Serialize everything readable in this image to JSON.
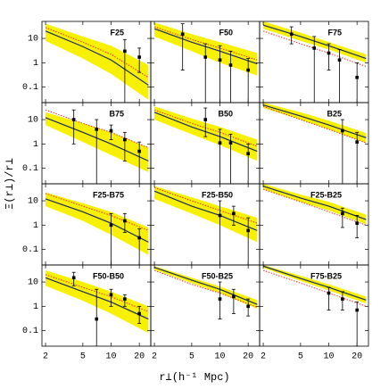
{
  "xlabel": "r⊥(h⁻¹ Mpc)",
  "ylabel": "Ξ(r⊥)/r⊥",
  "chart_data": [
    {
      "type": "errorbar",
      "title": "F25",
      "xlim": [
        1.83,
        26.5
      ],
      "ylim": [
        0.023,
        50
      ],
      "log": true,
      "xticks": [
        2,
        5,
        10,
        20
      ],
      "yticks": [
        0.1,
        1,
        10
      ],
      "band_color": "#f7f000",
      "line_color": "#1c2a6a",
      "dotted_color": "#e8302a",
      "x": [
        2,
        5,
        10,
        25
      ],
      "model": [
        20,
        4.6,
        1.3,
        0.12
      ],
      "band_high": [
        40,
        12,
        5,
        0.8
      ],
      "band_low": [
        8,
        1.5,
        0.35,
        0.03
      ],
      "dotted": [
        28,
        7,
        2.2,
        0.25
      ],
      "points_x": [
        14,
        20
      ],
      "points_y": [
        3,
        1.7
      ],
      "points_low": [
        0.023,
        0.4
      ],
      "points_high": [
        9,
        4
      ]
    },
    {
      "type": "errorbar",
      "title": "F50",
      "xlim": [
        1.83,
        26.5
      ],
      "ylim": [
        0.023,
        50
      ],
      "log": true,
      "xticks": [
        2,
        5,
        10,
        20
      ],
      "yticks": [
        0.1,
        1,
        10
      ],
      "band_color": "#f7f000",
      "line_color": "#1c2a6a",
      "dotted_color": "#e8302a",
      "x": [
        2,
        5,
        10,
        25
      ],
      "model": [
        25,
        7,
        3,
        0.9
      ],
      "band_high": [
        45,
        15,
        7,
        2.5
      ],
      "band_low": [
        12,
        3,
        1,
        0.3
      ],
      "dotted": [
        30,
        9,
        4,
        1.3
      ],
      "points_x": [
        4,
        7,
        10,
        13,
        20
      ],
      "points_y": [
        15,
        1.7,
        1.3,
        0.8,
        0.5
      ],
      "points_low": [
        0.5,
        0.023,
        0.023,
        0.023,
        0.023
      ],
      "points_high": [
        40,
        6,
        5,
        3,
        1.5
      ]
    },
    {
      "type": "errorbar",
      "title": "F75",
      "xlim": [
        1.83,
        26.5
      ],
      "ylim": [
        0.023,
        50
      ],
      "log": true,
      "xticks": [
        2,
        5,
        10,
        20
      ],
      "yticks": [
        0.1,
        1,
        10
      ],
      "band_color": "#f7f000",
      "line_color": "#1c2a6a",
      "dotted_color": "#e8302a",
      "x": [
        2,
        5,
        10,
        25
      ],
      "model": [
        35,
        12,
        5,
        1.5
      ],
      "band_high": [
        50,
        17,
        7,
        2.2
      ],
      "band_low": [
        25,
        8,
        3.5,
        1
      ],
      "dotted": [
        20,
        6,
        2.5,
        0.7
      ],
      "points_x": [
        4,
        7,
        10,
        13,
        20
      ],
      "points_y": [
        15,
        4,
        2.5,
        1.3,
        0.25
      ],
      "points_low": [
        6,
        0.023,
        0.5,
        0.023,
        0.023
      ],
      "points_high": [
        30,
        12,
        6,
        3.5,
        1
      ]
    },
    {
      "type": "errorbar",
      "title": "B75",
      "xlim": [
        1.83,
        26.5
      ],
      "ylim": [
        0.023,
        50
      ],
      "log": true,
      "xticks": [
        2,
        5,
        10,
        20
      ],
      "yticks": [
        0.1,
        1,
        10
      ],
      "band_color": "#f7f000",
      "line_color": "#1c2a6a",
      "dotted_color": "#e8302a",
      "x": [
        2,
        5,
        10,
        25
      ],
      "model": [
        12,
        3,
        1,
        0.2
      ],
      "band_high": [
        20,
        7,
        3,
        0.7
      ],
      "band_low": [
        6,
        1.2,
        0.35,
        0.07
      ],
      "dotted": [
        25,
        7,
        3,
        0.7
      ],
      "points_x": [
        4,
        7,
        10,
        14,
        20
      ],
      "points_y": [
        10,
        4,
        3.5,
        1.5,
        0.5
      ],
      "points_low": [
        1,
        0.023,
        1.5,
        0.2,
        0.023
      ],
      "points_high": [
        25,
        10,
        6,
        3,
        1.2
      ]
    },
    {
      "type": "errorbar",
      "title": "B50",
      "xlim": [
        1.83,
        26.5
      ],
      "ylim": [
        0.023,
        50
      ],
      "log": true,
      "xticks": [
        2,
        5,
        10,
        20
      ],
      "yticks": [
        0.1,
        1,
        10
      ],
      "band_color": "#f7f000",
      "line_color": "#1c2a6a",
      "dotted_color": "#e8302a",
      "x": [
        2,
        5,
        10,
        25
      ],
      "model": [
        20,
        5,
        2,
        0.5
      ],
      "band_high": [
        35,
        11,
        5,
        1.5
      ],
      "band_low": [
        10,
        2.5,
        0.9,
        0.2
      ],
      "dotted": [
        25,
        7,
        3,
        0.8
      ],
      "points_x": [
        7,
        10,
        13,
        20
      ],
      "points_y": [
        10,
        1.1,
        1.1,
        0.4
      ],
      "points_low": [
        2,
        0.023,
        0.023,
        0.023
      ],
      "points_high": [
        30,
        4,
        2.5,
        1
      ]
    },
    {
      "type": "errorbar",
      "title": "B25",
      "xlim": [
        1.83,
        26.5
      ],
      "ylim": [
        0.023,
        50
      ],
      "log": true,
      "xticks": [
        2,
        5,
        10,
        20
      ],
      "yticks": [
        0.1,
        1,
        10
      ],
      "band_color": "#f7f000",
      "line_color": "#1c2a6a",
      "dotted_color": "#e8302a",
      "x": [
        2,
        5,
        10,
        25
      ],
      "model": [
        40,
        14,
        6,
        1.8
      ],
      "band_high": [
        50,
        20,
        9,
        2.8
      ],
      "band_low": [
        30,
        10,
        4,
        1.1
      ],
      "dotted": [
        35,
        10,
        4,
        1.1
      ],
      "points_x": [
        14,
        20
      ],
      "points_y": [
        3.5,
        1.2
      ],
      "points_low": [
        0.023,
        0.023
      ],
      "points_high": [
        10,
        3
      ]
    },
    {
      "type": "errorbar",
      "title": "F25-B75",
      "xlim": [
        1.83,
        26.5
      ],
      "ylim": [
        0.023,
        50
      ],
      "log": true,
      "xticks": [
        2,
        5,
        10,
        20
      ],
      "yticks": [
        0.1,
        1,
        10
      ],
      "band_color": "#f7f000",
      "line_color": "#1c2a6a",
      "dotted_color": "#e8302a",
      "x": [
        2,
        5,
        10,
        25
      ],
      "model": [
        12,
        3.5,
        1.2,
        0.2
      ],
      "band_high": [
        22,
        8,
        3.5,
        0.8
      ],
      "band_low": [
        6,
        1.5,
        0.4,
        0.06
      ],
      "dotted": [
        20,
        6,
        2.5,
        0.6
      ],
      "points_x": [
        10,
        14,
        20
      ],
      "points_y": [
        1,
        1.5,
        0.3
      ],
      "points_low": [
        0.023,
        0.5,
        0.023
      ],
      "points_high": [
        3,
        3,
        0.7
      ]
    },
    {
      "type": "errorbar",
      "title": "F25-B50",
      "xlim": [
        1.83,
        26.5
      ],
      "ylim": [
        0.023,
        50
      ],
      "log": true,
      "xticks": [
        2,
        5,
        10,
        20
      ],
      "yticks": [
        0.1,
        1,
        10
      ],
      "band_color": "#f7f000",
      "line_color": "#1c2a6a",
      "dotted_color": "#e8302a",
      "x": [
        2,
        5,
        10,
        25
      ],
      "model": [
        25,
        6,
        2.5,
        0.6
      ],
      "band_high": [
        40,
        14,
        6,
        2
      ],
      "band_low": [
        12,
        3,
        1,
        0.2
      ],
      "dotted": [
        35,
        10,
        4,
        1.2
      ],
      "points_x": [
        10,
        14,
        20
      ],
      "points_y": [
        2.5,
        3,
        0.6
      ],
      "points_low": [
        0.023,
        1,
        0.023
      ],
      "points_high": [
        10,
        6,
        2
      ]
    },
    {
      "type": "errorbar",
      "title": "F25-B25",
      "xlim": [
        1.83,
        26.5
      ],
      "ylim": [
        0.023,
        50
      ],
      "log": true,
      "xticks": [
        2,
        5,
        10,
        20
      ],
      "yticks": [
        0.1,
        1,
        10
      ],
      "band_color": "#f7f000",
      "line_color": "#1c2a6a",
      "dotted_color": "#e8302a",
      "x": [
        2,
        5,
        10,
        25
      ],
      "model": [
        40,
        13,
        6,
        1.7
      ],
      "band_high": [
        50,
        18,
        9,
        2.7
      ],
      "band_low": [
        30,
        9,
        4,
        1.1
      ],
      "dotted": [
        30,
        9,
        3.5,
        1
      ],
      "points_x": [
        14,
        20
      ],
      "points_y": [
        3,
        1.2
      ],
      "points_low": [
        0.8,
        0.3
      ],
      "points_high": [
        5,
        2.5
      ]
    },
    {
      "type": "errorbar",
      "title": "F50-B50",
      "xlim": [
        1.83,
        26.5
      ],
      "ylim": [
        0.023,
        50
      ],
      "log": true,
      "xticks": [
        2,
        5,
        10,
        20
      ],
      "yticks": [
        0.1,
        1,
        10
      ],
      "band_color": "#f7f000",
      "line_color": "#1c2a6a",
      "dotted_color": "#e8302a",
      "x": [
        2,
        5,
        10,
        25
      ],
      "model": [
        15,
        4,
        1.5,
        0.3
      ],
      "band_high": [
        30,
        10,
        4,
        1
      ],
      "band_low": [
        7,
        1.7,
        0.5,
        0.08
      ],
      "dotted": [
        20,
        6,
        2.5,
        0.6
      ],
      "points_x": [
        4,
        7,
        10,
        14,
        20
      ],
      "points_y": [
        15,
        0.3,
        3,
        2,
        0.5
      ],
      "points_low": [
        7,
        0.023,
        1,
        1,
        0.2
      ],
      "points_high": [
        25,
        5,
        5,
        3,
        1
      ]
    },
    {
      "type": "errorbar",
      "title": "F50-B25",
      "xlim": [
        1.83,
        26.5
      ],
      "ylim": [
        0.023,
        50
      ],
      "log": true,
      "xticks": [
        2,
        5,
        10,
        20
      ],
      "yticks": [
        0.1,
        1,
        10
      ],
      "band_color": "#f7f000",
      "line_color": "#1c2a6a",
      "dotted_color": "#e8302a",
      "x": [
        2,
        5,
        10,
        25
      ],
      "model": [
        40,
        12,
        5,
        1.2
      ],
      "band_high": [
        45,
        15,
        6.5,
        1.8
      ],
      "band_low": [
        32,
        9,
        3.5,
        0.8
      ],
      "dotted": [
        30,
        8,
        3.5,
        0.9
      ],
      "points_x": [
        10,
        14,
        20
      ],
      "points_y": [
        2,
        2.5,
        1
      ],
      "points_low": [
        0.3,
        0.5,
        0.4
      ],
      "points_high": [
        10,
        5,
        2
      ]
    },
    {
      "type": "errorbar",
      "title": "F75-B25",
      "xlim": [
        1.83,
        26.5
      ],
      "ylim": [
        0.023,
        50
      ],
      "log": true,
      "xticks": [
        2,
        5,
        10,
        20
      ],
      "yticks": [
        0.1,
        1,
        10
      ],
      "band_color": "#f7f000",
      "line_color": "#1c2a6a",
      "dotted_color": "#e8302a",
      "x": [
        2,
        5,
        10,
        25
      ],
      "model": [
        45,
        14,
        6,
        1.8
      ],
      "band_high": [
        50,
        18,
        8,
        2.5
      ],
      "band_low": [
        38,
        11,
        4.5,
        1.3
      ],
      "dotted": [
        30,
        9,
        3.5,
        1
      ],
      "points_x": [
        10,
        14,
        20
      ],
      "points_y": [
        3.5,
        2,
        0.7
      ],
      "points_low": [
        0.7,
        0.7,
        0.023
      ],
      "points_high": [
        6,
        4,
        1.5
      ]
    }
  ]
}
